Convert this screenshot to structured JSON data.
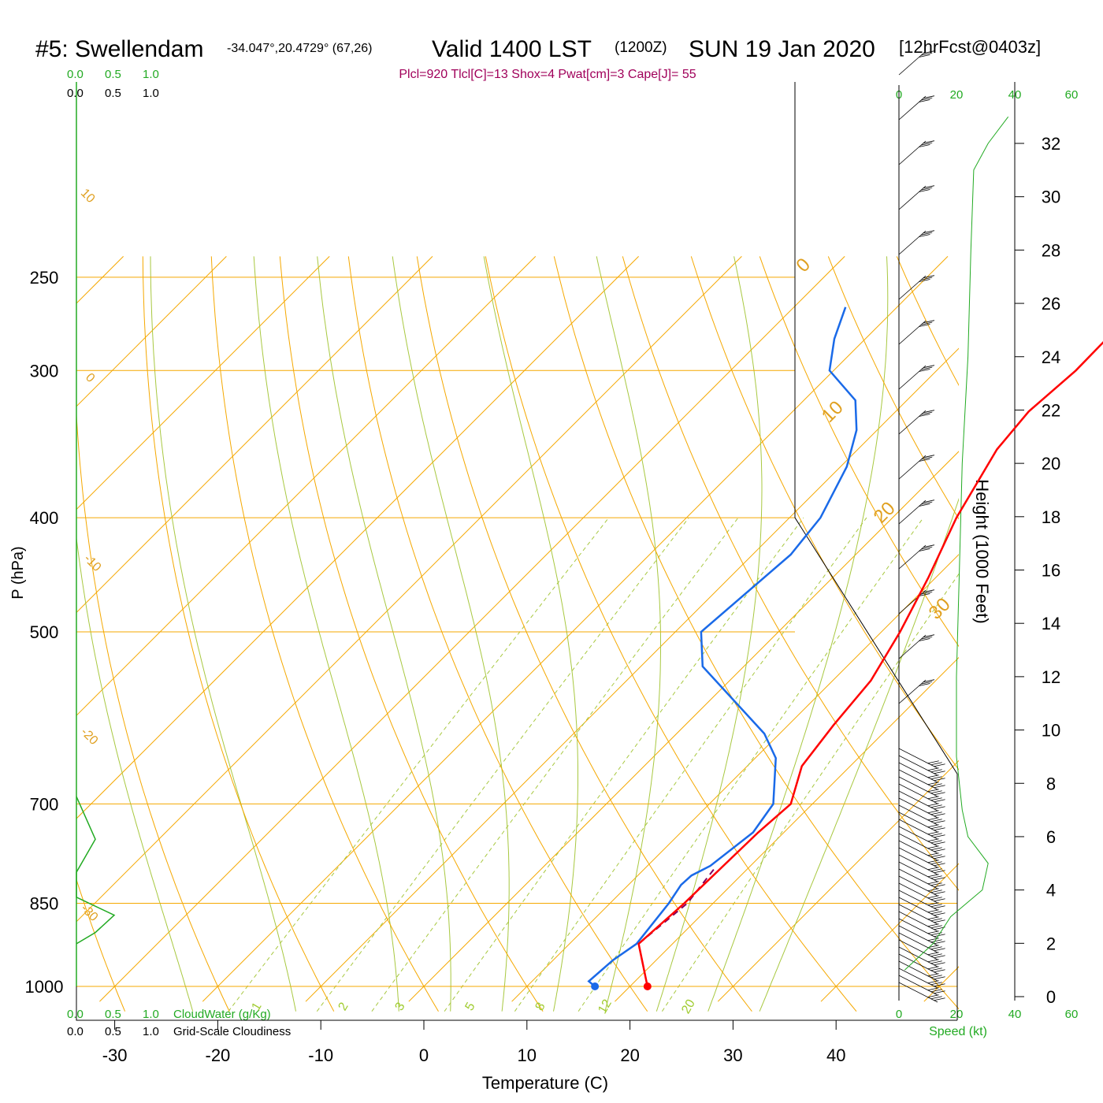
{
  "header": {
    "station": "#5: Swellendam",
    "coords": "-34.047°,20.4729° (67,26)",
    "valid": "Valid 1400 LST",
    "zulu": "(1200Z)",
    "date": "SUN 19 Jan 2020",
    "forecast": "[12hrFcst@0403z]",
    "indices": "Plcl=920 Tlcl[C]=13 Shox=4 Pwat[cm]=3 Cape[J]= 55"
  },
  "axes": {
    "xlabel": "Temperature (C)",
    "ylabel": "P (hPa)",
    "height_label": "Height (1000 Feet)",
    "x_ticks": [
      "-30",
      "-20",
      "-10",
      "0",
      "10",
      "20",
      "30",
      "40"
    ],
    "x_tick_values": [
      -30,
      -20,
      -10,
      0,
      10,
      20,
      30,
      40
    ],
    "p_ticks": [
      "250",
      "300",
      "400",
      "500",
      "700",
      "850",
      "1000"
    ],
    "p_tick_values": [
      250,
      300,
      400,
      500,
      700,
      850,
      1000
    ],
    "height_ticks": [
      "32",
      "30",
      "28",
      "26",
      "24",
      "22",
      "20",
      "18",
      "16",
      "14",
      "12",
      "10",
      "8",
      "6",
      "4",
      "2",
      "0"
    ],
    "height_tick_values": [
      32,
      30,
      28,
      26,
      24,
      22,
      20,
      18,
      16,
      14,
      12,
      10,
      8,
      6,
      4,
      2,
      0
    ]
  },
  "cloud_scale": {
    "top_green": [
      "0.0",
      "0.5",
      "1.0"
    ],
    "top_black": [
      "0.0",
      "0.5",
      "1.0"
    ],
    "bottom_green": [
      "0.0",
      "0.5",
      "1.0"
    ],
    "bottom_black": [
      "0.0",
      "0.5",
      "1.0"
    ],
    "cloudwater_label": "CloudWater (g/Kg)",
    "cloudiness_label": "Grid-Scale Cloudiness"
  },
  "speed_scale": {
    "top_black": "0",
    "top_green": [
      "20",
      "40",
      "60"
    ],
    "bottom_black": "0",
    "bottom_green": [
      "20",
      "40",
      "60"
    ],
    "label": "Speed (kt)"
  },
  "dry_adiabat_labels": [
    "10",
    "0",
    "-10",
    "-20",
    "-30",
    "0",
    "10",
    "20",
    "30"
  ],
  "mixing_ratio_labels": [
    "1",
    "2",
    "3",
    "5",
    "8",
    "12",
    "20"
  ],
  "colors": {
    "isotherm": "#f5a800",
    "dry_adiabat": "#f5a800",
    "moist_adiabat": "#a8c840",
    "mixing_ratio": "#a8c840",
    "temperature": "#ff0000",
    "dewpoint": "#1a6ae8",
    "parcel": "#800060",
    "indices_text": "#a0005a",
    "green_text": "#22aa22",
    "cloud_profile": "#22aa22",
    "speed_profile": "#22aa22"
  },
  "chart_data": {
    "type": "line",
    "title": "#5: Swellendam",
    "xlabel": "Temperature (C)",
    "ylabel": "P (hPa)",
    "xlim": [
      -33,
      46
    ],
    "ylim": [
      1030,
      250
    ],
    "y_scale": "log",
    "series": [
      {
        "name": "Temperature",
        "points": [
          [
            21.7,
            1000
          ],
          [
            16.7,
            920
          ],
          [
            17.2,
            850
          ],
          [
            17.5,
            740
          ],
          [
            17.9,
            700
          ],
          [
            15.3,
            650
          ],
          [
            14.4,
            600
          ],
          [
            13.7,
            550
          ],
          [
            11.8,
            500
          ],
          [
            9.3,
            450
          ],
          [
            6.2,
            400
          ],
          [
            3.5,
            350
          ],
          [
            2.9,
            325
          ],
          [
            3.5,
            300
          ],
          [
            3.4,
            280
          ],
          [
            4.5,
            262
          ]
        ]
      },
      {
        "name": "Dewpoint",
        "points": [
          [
            16.6,
            1000
          ],
          [
            15.5,
            990
          ],
          [
            15.8,
            950
          ],
          [
            16.5,
            920
          ],
          [
            15.7,
            850
          ],
          [
            15.1,
            820
          ],
          [
            15.2,
            805
          ],
          [
            16.1,
            790
          ],
          [
            17.0,
            740
          ],
          [
            16.2,
            700
          ],
          [
            12.0,
            640
          ],
          [
            8.5,
            610
          ],
          [
            -4.0,
            535
          ],
          [
            -7.5,
            500
          ],
          [
            -6.3,
            430
          ],
          [
            -7.0,
            400
          ],
          [
            -9.4,
            362
          ],
          [
            -12.0,
            337
          ],
          [
            -15.0,
            318
          ],
          [
            -20.4,
            300
          ],
          [
            -23.0,
            282
          ],
          [
            -25.0,
            265
          ]
        ]
      },
      {
        "name": "Parcel",
        "points": [
          [
            21.7,
            1000
          ],
          [
            16.7,
            920
          ],
          [
            17.5,
            850
          ],
          [
            16.7,
            790
          ]
        ]
      }
    ],
    "surface_temperature": 21.7,
    "surface_dewpoint": 16.6,
    "cloud_water": [
      [
        0,
        690
      ],
      [
        0.2,
        750
      ],
      [
        0,
        800
      ],
      [
        0,
        840
      ],
      [
        0.4,
        870
      ],
      [
        0.2,
        900
      ],
      [
        0,
        920
      ]
    ],
    "wind_speed_profile_kt": [
      [
        2,
        1
      ],
      [
        12,
        2
      ],
      [
        18,
        3
      ],
      [
        29,
        4
      ],
      [
        31,
        5
      ],
      [
        24,
        6
      ],
      [
        22,
        7
      ],
      [
        20,
        9
      ],
      [
        20,
        12
      ],
      [
        21,
        16
      ],
      [
        22,
        20
      ],
      [
        24,
        24
      ],
      [
        25,
        28
      ],
      [
        26,
        31
      ],
      [
        31,
        32
      ],
      [
        38,
        33
      ]
    ]
  }
}
